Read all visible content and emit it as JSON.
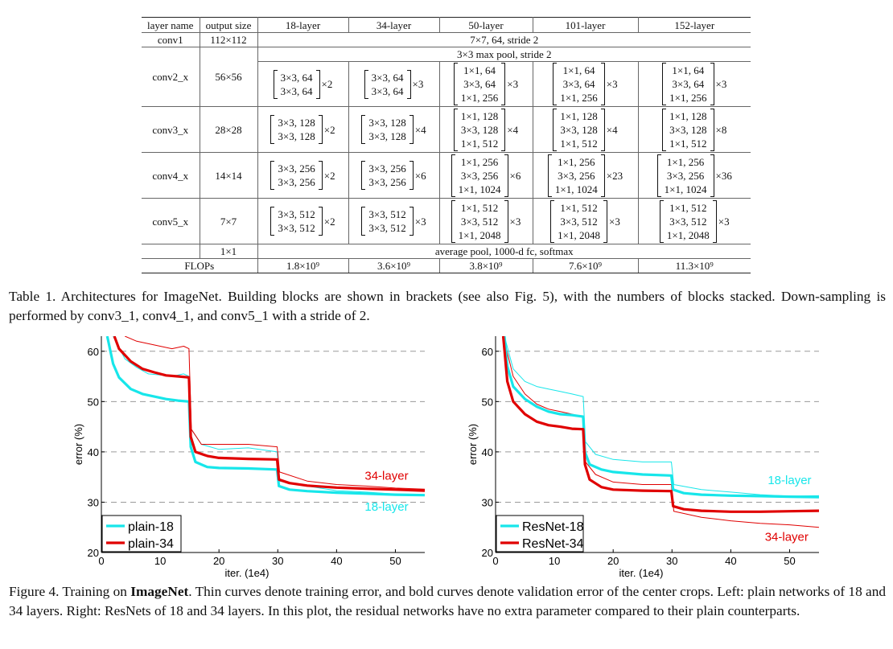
{
  "table": {
    "headers": [
      "layer name",
      "output size",
      "18-layer",
      "34-layer",
      "50-layer",
      "101-layer",
      "152-layer"
    ],
    "conv1": {
      "name": "conv1",
      "size": "112×112",
      "desc": "7×7, 64, stride 2"
    },
    "maxpool": "3×3 max pool, stride 2",
    "stages": [
      {
        "name": "conv2_x",
        "size": "56×56",
        "cells": [
          {
            "lines": [
              "3×3, 64",
              "3×3, 64"
            ],
            "mult": "×2"
          },
          {
            "lines": [
              "3×3, 64",
              "3×3, 64"
            ],
            "mult": "×3"
          },
          {
            "lines": [
              "1×1, 64",
              "3×3, 64",
              "1×1, 256"
            ],
            "mult": "×3"
          },
          {
            "lines": [
              "1×1, 64",
              "3×3, 64",
              "1×1, 256"
            ],
            "mult": "×3"
          },
          {
            "lines": [
              "1×1, 64",
              "3×3, 64",
              "1×1, 256"
            ],
            "mult": "×3"
          }
        ]
      },
      {
        "name": "conv3_x",
        "size": "28×28",
        "cells": [
          {
            "lines": [
              "3×3, 128",
              "3×3, 128"
            ],
            "mult": "×2"
          },
          {
            "lines": [
              "3×3, 128",
              "3×3, 128"
            ],
            "mult": "×4"
          },
          {
            "lines": [
              "1×1, 128",
              "3×3, 128",
              "1×1, 512"
            ],
            "mult": "×4"
          },
          {
            "lines": [
              "1×1, 128",
              "3×3, 128",
              "1×1, 512"
            ],
            "mult": "×4"
          },
          {
            "lines": [
              "1×1, 128",
              "3×3, 128",
              "1×1, 512"
            ],
            "mult": "×8"
          }
        ]
      },
      {
        "name": "conv4_x",
        "size": "14×14",
        "cells": [
          {
            "lines": [
              "3×3, 256",
              "3×3, 256"
            ],
            "mult": "×2"
          },
          {
            "lines": [
              "3×3, 256",
              "3×3, 256"
            ],
            "mult": "×6"
          },
          {
            "lines": [
              "1×1, 256",
              "3×3, 256",
              "1×1, 1024"
            ],
            "mult": "×6"
          },
          {
            "lines": [
              "1×1, 256",
              "3×3, 256",
              "1×1, 1024"
            ],
            "mult": "×23"
          },
          {
            "lines": [
              "1×1, 256",
              "3×3, 256",
              "1×1, 1024"
            ],
            "mult": "×36"
          }
        ]
      },
      {
        "name": "conv5_x",
        "size": "7×7",
        "cells": [
          {
            "lines": [
              "3×3, 512",
              "3×3, 512"
            ],
            "mult": "×2"
          },
          {
            "lines": [
              "3×3, 512",
              "3×3, 512"
            ],
            "mult": "×3"
          },
          {
            "lines": [
              "1×1, 512",
              "3×3, 512",
              "1×1, 2048"
            ],
            "mult": "×3"
          },
          {
            "lines": [
              "1×1, 512",
              "3×3, 512",
              "1×1, 2048"
            ],
            "mult": "×3"
          },
          {
            "lines": [
              "1×1, 512",
              "3×3, 512",
              "1×1, 2048"
            ],
            "mult": "×3"
          }
        ]
      }
    ],
    "final": {
      "size": "1×1",
      "desc": "average pool, 1000-d fc, softmax"
    },
    "flops": {
      "label": "FLOPs",
      "values": [
        "1.8×10⁹",
        "3.6×10⁹",
        "3.8×10⁹",
        "7.6×10⁹",
        "11.3×10⁹"
      ]
    }
  },
  "caption_table": "Table 1. Architectures for ImageNet. Building blocks are shown in brackets (see also Fig. 5), with the numbers of blocks stacked. Down-sampling is performed by conv3_1, conv4_1, and conv5_1 with a stride of 2.",
  "caption_figure": {
    "prefix": "Figure 4. Training on ",
    "bold": "ImageNet",
    "rest": ". Thin curves denote training error, and bold curves denote validation error of the center crops. Left: plain networks of 18 and 34 layers. Right: ResNets of 18 and 34 layers. In this plot, the residual networks have no extra parameter compared to their plain counterparts."
  },
  "colors": {
    "cyan": "#17e6ea",
    "red": "#e00000",
    "grid": "#9a9a9a"
  },
  "chart_data": [
    {
      "type": "line",
      "title": "",
      "xlabel": "iter. (1e4)",
      "ylabel": "error (%)",
      "xlim": [
        0,
        55
      ],
      "ylim": [
        20,
        63
      ],
      "xticks": [
        0,
        10,
        20,
        30,
        40,
        50
      ],
      "yticks": [
        20,
        30,
        40,
        50,
        60
      ],
      "grid": "dashed horizontal",
      "legend": "bottom-left",
      "annotations": [
        {
          "text": "34-layer",
          "color": "#e00000",
          "x": 48.5,
          "y": 34.5
        },
        {
          "text": "18-layer",
          "color": "#17e6ea",
          "x": 48.5,
          "y": 28.3
        }
      ],
      "series": [
        {
          "name": "plain-18",
          "legend": true,
          "color": "#17e6ea",
          "width": 3.2,
          "x": [
            1,
            2,
            3,
            5,
            7,
            9,
            11,
            13,
            14.9,
            15.2,
            16,
            18,
            20,
            25,
            29.9,
            30.2,
            32,
            35,
            40,
            45,
            50,
            55
          ],
          "y": [
            63,
            57.5,
            54.8,
            52.5,
            51.5,
            51,
            50.5,
            50.2,
            50,
            41,
            38,
            37,
            36.8,
            36.7,
            36.5,
            33.2,
            32.5,
            32.2,
            31.9,
            31.7,
            31.5,
            31.4
          ]
        },
        {
          "name": "plain-34",
          "legend": true,
          "color": "#e00000",
          "width": 3.2,
          "x": [
            2.2,
            3,
            5,
            7,
            9,
            11,
            13,
            14.9,
            15.2,
            16,
            18,
            20,
            25,
            29.9,
            30.2,
            32,
            35,
            40,
            45,
            50,
            55
          ],
          "y": [
            63,
            60.5,
            58,
            56.5,
            55.8,
            55.2,
            55,
            54.8,
            43,
            40,
            39.2,
            38.8,
            38.6,
            38.5,
            34.5,
            33.8,
            33.3,
            32.9,
            32.7,
            32.5,
            32.3
          ]
        },
        {
          "name": "plain-18 train",
          "legend": false,
          "color": "#17e6ea",
          "width": 1,
          "x": [
            2,
            4,
            6,
            8,
            10,
            12,
            14,
            14.9,
            15.3,
            17,
            20,
            25,
            29.9,
            30.3,
            35,
            40,
            45,
            50,
            55
          ],
          "y": [
            63,
            58.5,
            56.8,
            55.5,
            55.3,
            55,
            55.5,
            55,
            44.5,
            41.5,
            40.5,
            40.8,
            40,
            34.2,
            33.2,
            32.3,
            32,
            31.6,
            31.4
          ]
        },
        {
          "name": "plain-34 train",
          "legend": false,
          "color": "#e00000",
          "width": 1,
          "x": [
            4,
            6,
            8,
            10,
            12,
            14,
            14.9,
            15.3,
            17,
            20,
            25,
            29.9,
            30.3,
            35,
            40,
            45,
            50,
            55
          ],
          "y": [
            63,
            62,
            61.5,
            61,
            60.5,
            61,
            60.5,
            44.5,
            41.5,
            41.5,
            41.5,
            41,
            36,
            34.2,
            33.5,
            33.2,
            32.8,
            32.6
          ]
        }
      ]
    },
    {
      "type": "line",
      "title": "",
      "xlabel": "iter. (1e4)",
      "ylabel": "error (%)",
      "xlim": [
        0,
        55
      ],
      "ylim": [
        20,
        63
      ],
      "xticks": [
        0,
        10,
        20,
        30,
        40,
        50
      ],
      "yticks": [
        20,
        30,
        40,
        50,
        60
      ],
      "grid": "dashed horizontal",
      "legend": "bottom-left",
      "annotations": [
        {
          "text": "18-layer",
          "color": "#17e6ea",
          "x": 50,
          "y": 33.6
        },
        {
          "text": "34-layer",
          "color": "#e00000",
          "x": 49.5,
          "y": 22.3
        }
      ],
      "series": [
        {
          "name": "ResNet-18",
          "legend": true,
          "color": "#17e6ea",
          "width": 3.2,
          "x": [
            1.5,
            2,
            3,
            5,
            7,
            9,
            11,
            13,
            14.9,
            15.2,
            16,
            18,
            20,
            25,
            29.9,
            30.2,
            32,
            35,
            40,
            45,
            50,
            55
          ],
          "y": [
            63,
            57,
            53,
            50.5,
            49,
            48,
            47.5,
            47.3,
            47,
            40,
            37.5,
            36.5,
            36,
            35.5,
            35.3,
            32.5,
            31.8,
            31.5,
            31.3,
            31.2,
            31.1,
            31
          ]
        },
        {
          "name": "ResNet-34",
          "legend": true,
          "color": "#e00000",
          "width": 3.2,
          "x": [
            1.3,
            2,
            3,
            5,
            7,
            9,
            11,
            13,
            14.9,
            15.2,
            16,
            18,
            20,
            25,
            29.9,
            30.2,
            32,
            35,
            40,
            45,
            50,
            55
          ],
          "y": [
            63,
            54,
            50,
            47.5,
            46,
            45.3,
            45,
            44.6,
            44.5,
            37.5,
            34.5,
            33,
            32.5,
            32.3,
            32.2,
            29.2,
            28.6,
            28.3,
            28.1,
            28.1,
            28.2,
            28.3
          ]
        },
        {
          "name": "ResNet-18 train",
          "legend": false,
          "color": "#17e6ea",
          "width": 1,
          "x": [
            1.5,
            3,
            5,
            7,
            9,
            11,
            13,
            14.9,
            15.3,
            17,
            20,
            25,
            29.9,
            30.3,
            35,
            40,
            45,
            50,
            55
          ],
          "y": [
            63,
            56.5,
            54,
            53,
            52.5,
            52,
            51.5,
            51,
            42,
            39.5,
            38.5,
            38,
            38,
            33.5,
            32.5,
            32,
            31.5,
            31.2,
            31.3
          ]
        },
        {
          "name": "ResNet-34 train",
          "legend": false,
          "color": "#e00000",
          "width": 1,
          "x": [
            1.3,
            3,
            5,
            7,
            9,
            11,
            13,
            14.9,
            15.3,
            17,
            20,
            25,
            29.9,
            30.3,
            35,
            40,
            45,
            50,
            55
          ],
          "y": [
            63,
            55,
            51.5,
            49.5,
            48.5,
            48,
            47.5,
            47,
            38,
            35.5,
            34,
            33.5,
            33.5,
            28.2,
            27,
            26.3,
            25.8,
            25.5,
            25
          ]
        }
      ]
    }
  ]
}
